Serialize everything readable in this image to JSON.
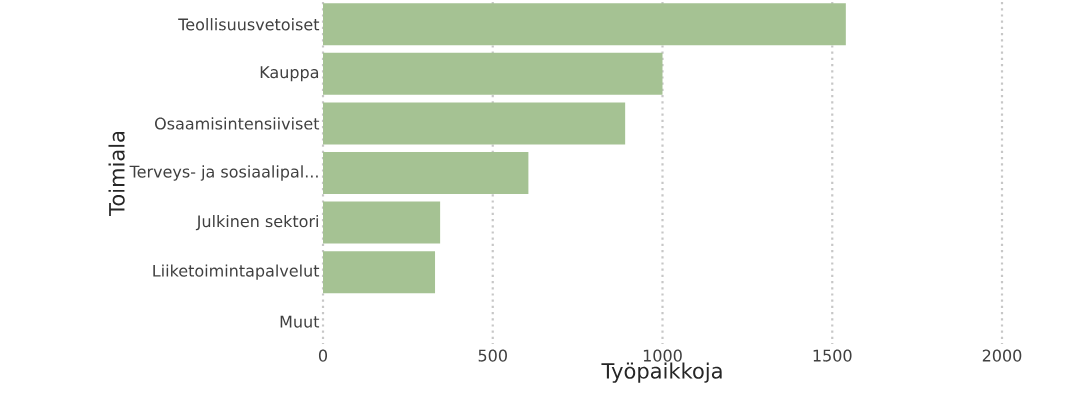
{
  "chart_data": {
    "type": "bar",
    "orientation": "horizontal",
    "xlabel": "Työpaikkoja",
    "ylabel": "Toimiala",
    "categories": [
      "Teollisuusvetoiset",
      "Kauppa",
      "Osaamisintensiiviset",
      "Terveys- ja sosiaalipal...",
      "Julkinen sektori",
      "Liiketoimintapalvelut",
      "Muut"
    ],
    "values": [
      1540,
      1000,
      890,
      605,
      345,
      330,
      0
    ],
    "color": "#a5c293",
    "xlim": [
      0,
      2000
    ],
    "xticks": [
      0,
      500,
      1000,
      1500,
      2000
    ],
    "grid": "x"
  }
}
